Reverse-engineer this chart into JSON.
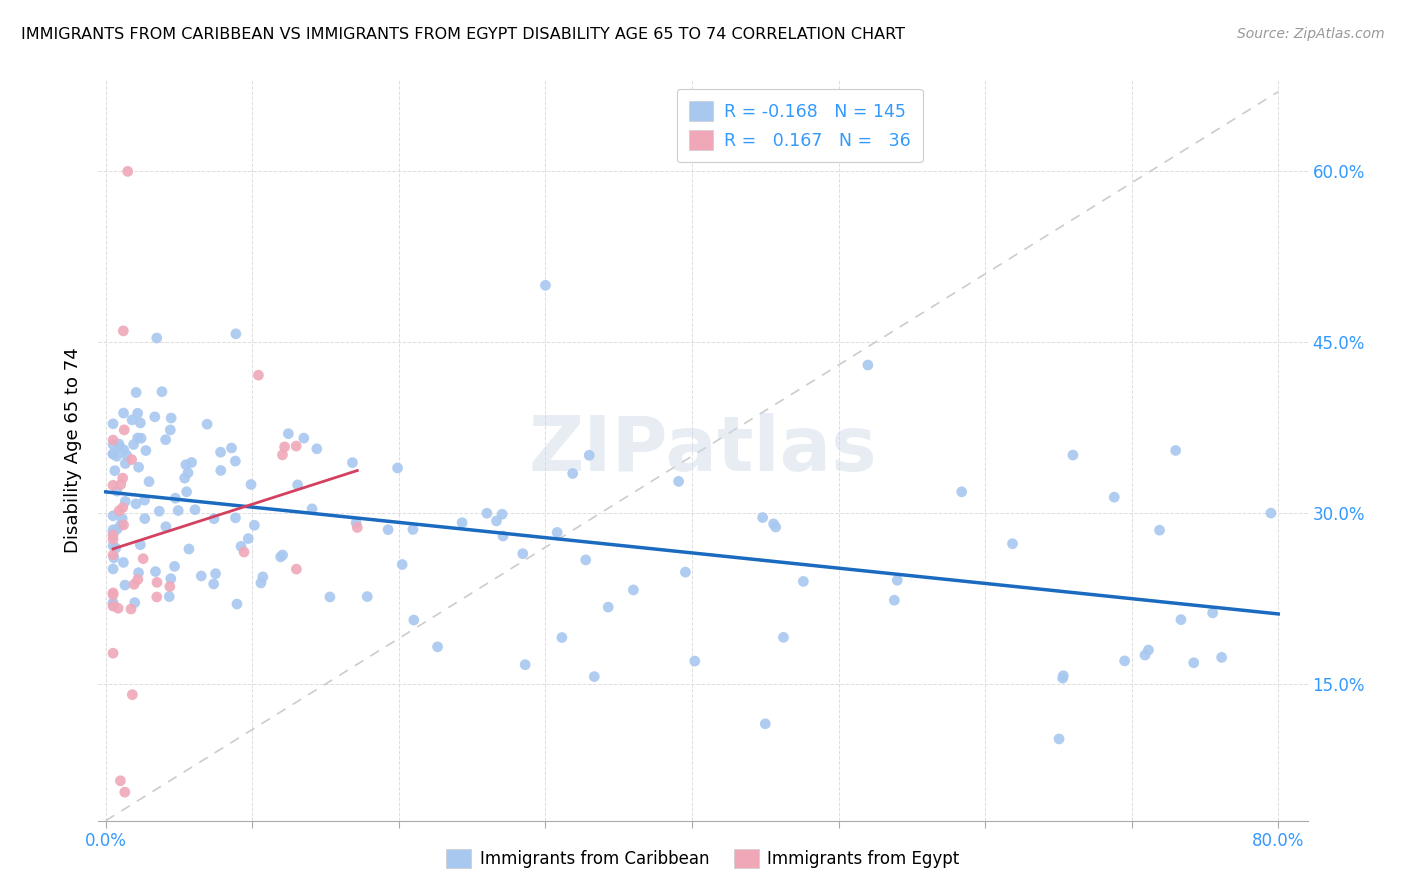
{
  "title": "IMMIGRANTS FROM CARIBBEAN VS IMMIGRANTS FROM EGYPT DISABILITY AGE 65 TO 74 CORRELATION CHART",
  "source": "Source: ZipAtlas.com",
  "ylabel": "Disability Age 65 to 74",
  "xlim": [
    -0.005,
    0.82
  ],
  "ylim": [
    0.03,
    0.68
  ],
  "ytick_positions": [
    0.15,
    0.3,
    0.45,
    0.6
  ],
  "ytick_labels": [
    "15.0%",
    "30.0%",
    "45.0%",
    "60.0%"
  ],
  "xtick_positions": [
    0.0,
    0.1,
    0.2,
    0.3,
    0.4,
    0.5,
    0.6,
    0.7,
    0.8
  ],
  "xtick_labels": [
    "0.0%",
    "",
    "",
    "",
    "",
    "",
    "",
    "",
    "80.0%"
  ],
  "caribbean_color": "#a8c8f0",
  "egypt_color": "#f0a8b8",
  "trend_caribbean_color": "#1a6bbf",
  "trend_egypt_color": "#d44060",
  "diagonal_color": "#cccccc",
  "watermark": "ZIPatlas",
  "background_color": "#ffffff",
  "grid_color": "#dddddd",
  "label_color": "#3399ff",
  "caribbean_R": "-0.168",
  "caribbean_N": "145",
  "egypt_R": "0.167",
  "egypt_N": "36",
  "legend_label1": "Immigrants from Caribbean",
  "legend_label2": "Immigrants from Egypt",
  "scatter_size": 60
}
